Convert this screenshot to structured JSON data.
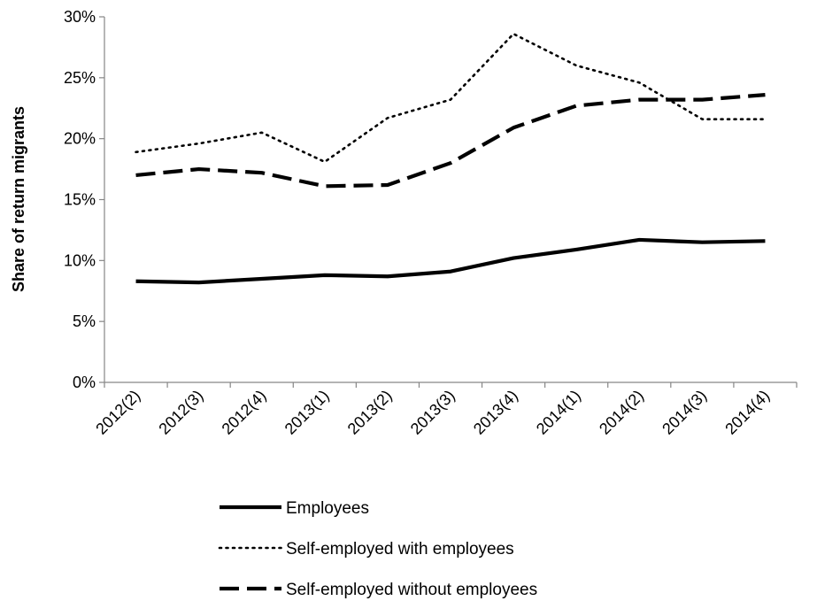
{
  "chart_data": {
    "type": "line",
    "title": "",
    "xlabel": "",
    "ylabel": "Share of return migrants",
    "categories": [
      "2012(2)",
      "2012(3)",
      "2012(4)",
      "2013(1)",
      "2013(2)",
      "2013(3)",
      "2013(4)",
      "2014(1)",
      "2014(2)",
      "2014(3)",
      "2014(4)"
    ],
    "ylim": [
      0,
      30
    ],
    "yticks": [
      0,
      5,
      10,
      15,
      20,
      25,
      30
    ],
    "ytick_labels": [
      "0%",
      "5%",
      "10%",
      "15%",
      "20%",
      "25%",
      "30%"
    ],
    "grid": false,
    "legend_position": "bottom",
    "series": [
      {
        "name": "Employees",
        "style": "solid",
        "color": "#000000",
        "values": [
          8.3,
          8.2,
          8.5,
          8.8,
          8.7,
          9.1,
          10.2,
          10.9,
          11.7,
          11.5,
          11.6
        ]
      },
      {
        "name": "Self-employed with employees",
        "style": "dotted",
        "color": "#000000",
        "values": [
          18.9,
          19.6,
          20.5,
          18.1,
          21.7,
          23.2,
          28.6,
          26.0,
          24.6,
          21.6,
          21.6
        ]
      },
      {
        "name": "Self-employed without employees",
        "style": "dashed",
        "color": "#000000",
        "values": [
          17.0,
          17.5,
          17.2,
          16.1,
          16.2,
          18.0,
          20.9,
          22.7,
          23.2,
          23.2,
          23.6
        ]
      }
    ]
  }
}
